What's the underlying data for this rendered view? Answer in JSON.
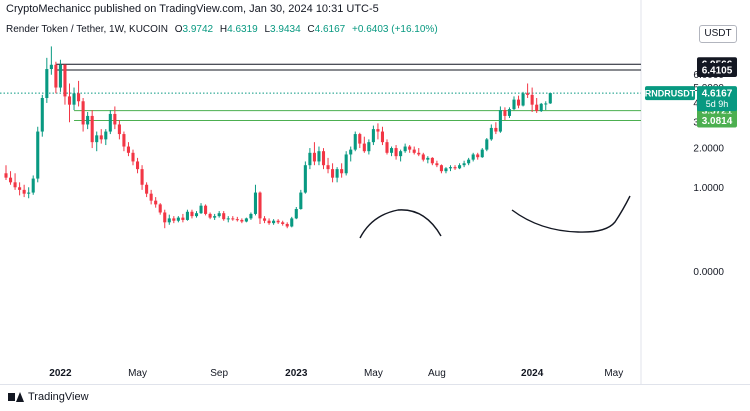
{
  "header": {
    "published": "CryptoMechanicc published on TradingView.com, Jan 30, 2024 10:31 UTC-5"
  },
  "legend": {
    "symbol": "Render Token / Tether, 1W, KUCOIN",
    "o_label": "O",
    "o_value": "3.9742",
    "h_label": "H",
    "h_value": "4.6319",
    "l_label": "L",
    "l_value": "3.9434",
    "c_label": "C",
    "c_value": "4.6167",
    "change": "+0.6403 (+16.10%)"
  },
  "currency_button": "USDT",
  "footer": {
    "brand": "TradingView"
  },
  "colors": {
    "up": "#089981",
    "down": "#f23645",
    "level": "#4caf50",
    "accent_label": "#089981"
  },
  "chart_data": {
    "type": "candlestick",
    "interval": "1W",
    "y_axis": {
      "position": "right",
      "ticks": [
        0,
        1,
        2,
        3,
        4,
        5,
        6
      ],
      "tick_labels": [
        "0.0000",
        "1.0000",
        "2.0000",
        "3.0000",
        "4.0000",
        "5.0000",
        "6.0000"
      ],
      "scale": "log",
      "range": [
        -0.35,
        9.2
      ]
    },
    "x_axis": {
      "range": [
        "2021-10-11",
        "2024-06-17"
      ],
      "tick_labels": [
        {
          "label": "2022",
          "date": "2022-01-03"
        },
        {
          "label": "May",
          "date": "2022-05-02"
        },
        {
          "label": "Sep",
          "date": "2022-09-05"
        },
        {
          "label": "2023",
          "date": "2023-01-02"
        },
        {
          "label": "May",
          "date": "2023-05-01"
        },
        {
          "label": "Aug",
          "date": "2023-08-07"
        },
        {
          "label": "2024",
          "date": "2024-01-01"
        },
        {
          "label": "May",
          "date": "2024-05-06"
        }
      ]
    },
    "horizontal_levels": [
      {
        "value": 6.9566,
        "label": "6.9566",
        "style": "black"
      },
      {
        "value": 6.4105,
        "label": "6.4105",
        "style": "black"
      },
      {
        "value": 3.5721,
        "label": "3.5721",
        "style": "green"
      },
      {
        "value": 3.0814,
        "label": "3.0814",
        "style": "green"
      }
    ],
    "last_price": {
      "value": 4.6167,
      "symbol_label": "RNDRUSDT",
      "price_label": "4.6167",
      "countdown": "5d 9h"
    },
    "candles": [
      {
        "date": "2021-10-11",
        "o": 1.3,
        "h": 1.5,
        "l": 1.15,
        "c": 1.2
      },
      {
        "date": "2021-10-18",
        "o": 1.2,
        "h": 1.35,
        "l": 1.05,
        "c": 1.1
      },
      {
        "date": "2021-10-25",
        "o": 1.1,
        "h": 1.3,
        "l": 0.95,
        "c": 1.0
      },
      {
        "date": "2021-11-01",
        "o": 1.0,
        "h": 1.1,
        "l": 0.85,
        "c": 0.95
      },
      {
        "date": "2021-11-08",
        "o": 0.95,
        "h": 1.05,
        "l": 0.82,
        "c": 0.88
      },
      {
        "date": "2021-11-15",
        "o": 0.88,
        "h": 1.0,
        "l": 0.8,
        "c": 0.9
      },
      {
        "date": "2021-11-22",
        "o": 0.9,
        "h": 1.25,
        "l": 0.86,
        "c": 1.18
      },
      {
        "date": "2021-11-29",
        "o": 1.18,
        "h": 2.8,
        "l": 1.1,
        "c": 2.6
      },
      {
        "date": "2021-12-06",
        "o": 2.6,
        "h": 4.5,
        "l": 2.4,
        "c": 4.3
      },
      {
        "date": "2021-12-13",
        "o": 4.3,
        "h": 7.6,
        "l": 4.0,
        "c": 6.5
      },
      {
        "date": "2021-12-20",
        "o": 6.5,
        "h": 8.9,
        "l": 6.0,
        "c": 6.9
      },
      {
        "date": "2021-12-27",
        "o": 6.9,
        "h": 7.2,
        "l": 4.6,
        "c": 5.0
      },
      {
        "date": "2022-01-03",
        "o": 5.0,
        "h": 7.4,
        "l": 4.7,
        "c": 6.9
      },
      {
        "date": "2022-01-10",
        "o": 6.9,
        "h": 6.95,
        "l": 3.9,
        "c": 4.4
      },
      {
        "date": "2022-01-17",
        "o": 4.4,
        "h": 5.3,
        "l": 3.0,
        "c": 3.9
      },
      {
        "date": "2022-01-24",
        "o": 3.9,
        "h": 5.0,
        "l": 3.6,
        "c": 4.6
      },
      {
        "date": "2022-01-31",
        "o": 4.6,
        "h": 5.5,
        "l": 3.8,
        "c": 4.1
      },
      {
        "date": "2022-02-07",
        "o": 4.1,
        "h": 4.3,
        "l": 2.6,
        "c": 2.9
      },
      {
        "date": "2022-02-14",
        "o": 2.9,
        "h": 3.5,
        "l": 2.7,
        "c": 3.3
      },
      {
        "date": "2022-02-21",
        "o": 3.3,
        "h": 3.6,
        "l": 2.0,
        "c": 2.2
      },
      {
        "date": "2022-02-28",
        "o": 2.2,
        "h": 2.6,
        "l": 1.9,
        "c": 2.45
      },
      {
        "date": "2022-03-07",
        "o": 2.45,
        "h": 2.7,
        "l": 2.15,
        "c": 2.3
      },
      {
        "date": "2022-03-14",
        "o": 2.3,
        "h": 2.7,
        "l": 2.1,
        "c": 2.6
      },
      {
        "date": "2022-03-21",
        "o": 2.6,
        "h": 3.6,
        "l": 2.5,
        "c": 3.4
      },
      {
        "date": "2022-03-28",
        "o": 3.4,
        "h": 3.8,
        "l": 2.7,
        "c": 2.9
      },
      {
        "date": "2022-04-04",
        "o": 2.9,
        "h": 3.1,
        "l": 2.3,
        "c": 2.5
      },
      {
        "date": "2022-04-11",
        "o": 2.5,
        "h": 2.6,
        "l": 1.9,
        "c": 2.05
      },
      {
        "date": "2022-04-18",
        "o": 2.05,
        "h": 2.2,
        "l": 1.75,
        "c": 1.85
      },
      {
        "date": "2022-04-25",
        "o": 1.85,
        "h": 1.95,
        "l": 1.5,
        "c": 1.6
      },
      {
        "date": "2022-05-02",
        "o": 1.6,
        "h": 1.7,
        "l": 1.3,
        "c": 1.4
      },
      {
        "date": "2022-05-09",
        "o": 1.4,
        "h": 1.5,
        "l": 0.95,
        "c": 1.05
      },
      {
        "date": "2022-05-16",
        "o": 1.05,
        "h": 1.1,
        "l": 0.82,
        "c": 0.88
      },
      {
        "date": "2022-05-23",
        "o": 0.88,
        "h": 0.95,
        "l": 0.7,
        "c": 0.76
      },
      {
        "date": "2022-05-30",
        "o": 0.76,
        "h": 0.82,
        "l": 0.65,
        "c": 0.7
      },
      {
        "date": "2022-06-06",
        "o": 0.7,
        "h": 0.72,
        "l": 0.55,
        "c": 0.58
      },
      {
        "date": "2022-06-13",
        "o": 0.58,
        "h": 0.62,
        "l": 0.38,
        "c": 0.45
      },
      {
        "date": "2022-06-20",
        "o": 0.45,
        "h": 0.55,
        "l": 0.42,
        "c": 0.5
      },
      {
        "date": "2022-06-27",
        "o": 0.5,
        "h": 0.53,
        "l": 0.44,
        "c": 0.47
      },
      {
        "date": "2022-07-04",
        "o": 0.47,
        "h": 0.53,
        "l": 0.45,
        "c": 0.51
      },
      {
        "date": "2022-07-11",
        "o": 0.51,
        "h": 0.56,
        "l": 0.45,
        "c": 0.48
      },
      {
        "date": "2022-07-18",
        "o": 0.48,
        "h": 0.62,
        "l": 0.47,
        "c": 0.59
      },
      {
        "date": "2022-07-25",
        "o": 0.59,
        "h": 0.62,
        "l": 0.5,
        "c": 0.53
      },
      {
        "date": "2022-08-01",
        "o": 0.53,
        "h": 0.6,
        "l": 0.51,
        "c": 0.57
      },
      {
        "date": "2022-08-08",
        "o": 0.57,
        "h": 0.72,
        "l": 0.56,
        "c": 0.68
      },
      {
        "date": "2022-08-15",
        "o": 0.68,
        "h": 0.7,
        "l": 0.54,
        "c": 0.56
      },
      {
        "date": "2022-08-22",
        "o": 0.56,
        "h": 0.58,
        "l": 0.49,
        "c": 0.51
      },
      {
        "date": "2022-08-29",
        "o": 0.51,
        "h": 0.56,
        "l": 0.48,
        "c": 0.53
      },
      {
        "date": "2022-09-05",
        "o": 0.53,
        "h": 0.6,
        "l": 0.51,
        "c": 0.57
      },
      {
        "date": "2022-09-12",
        "o": 0.57,
        "h": 0.6,
        "l": 0.47,
        "c": 0.49
      },
      {
        "date": "2022-09-19",
        "o": 0.49,
        "h": 0.53,
        "l": 0.45,
        "c": 0.5
      },
      {
        "date": "2022-09-26",
        "o": 0.5,
        "h": 0.53,
        "l": 0.47,
        "c": 0.49
      },
      {
        "date": "2022-10-03",
        "o": 0.49,
        "h": 0.52,
        "l": 0.46,
        "c": 0.48
      },
      {
        "date": "2022-10-10",
        "o": 0.48,
        "h": 0.5,
        "l": 0.44,
        "c": 0.46
      },
      {
        "date": "2022-10-17",
        "o": 0.46,
        "h": 0.51,
        "l": 0.45,
        "c": 0.5
      },
      {
        "date": "2022-10-24",
        "o": 0.5,
        "h": 0.58,
        "l": 0.48,
        "c": 0.56
      },
      {
        "date": "2022-10-31",
        "o": 0.56,
        "h": 1.05,
        "l": 0.54,
        "c": 0.9
      },
      {
        "date": "2022-11-07",
        "o": 0.9,
        "h": 0.92,
        "l": 0.43,
        "c": 0.5
      },
      {
        "date": "2022-11-14",
        "o": 0.5,
        "h": 0.53,
        "l": 0.44,
        "c": 0.47
      },
      {
        "date": "2022-11-21",
        "o": 0.47,
        "h": 0.5,
        "l": 0.42,
        "c": 0.44
      },
      {
        "date": "2022-11-28",
        "o": 0.44,
        "h": 0.49,
        "l": 0.42,
        "c": 0.47
      },
      {
        "date": "2022-12-05",
        "o": 0.47,
        "h": 0.49,
        "l": 0.43,
        "c": 0.45
      },
      {
        "date": "2022-12-12",
        "o": 0.45,
        "h": 0.47,
        "l": 0.41,
        "c": 0.43
      },
      {
        "date": "2022-12-19",
        "o": 0.43,
        "h": 0.45,
        "l": 0.38,
        "c": 0.4
      },
      {
        "date": "2022-12-26",
        "o": 0.4,
        "h": 0.52,
        "l": 0.39,
        "c": 0.5
      },
      {
        "date": "2023-01-02",
        "o": 0.5,
        "h": 0.66,
        "l": 0.49,
        "c": 0.63
      },
      {
        "date": "2023-01-09",
        "o": 0.63,
        "h": 0.95,
        "l": 0.62,
        "c": 0.9
      },
      {
        "date": "2023-01-16",
        "o": 0.9,
        "h": 1.6,
        "l": 0.88,
        "c": 1.5
      },
      {
        "date": "2023-01-23",
        "o": 1.5,
        "h": 2.0,
        "l": 1.4,
        "c": 1.85
      },
      {
        "date": "2023-01-30",
        "o": 1.85,
        "h": 2.2,
        "l": 1.5,
        "c": 1.6
      },
      {
        "date": "2023-02-06",
        "o": 1.6,
        "h": 2.05,
        "l": 1.5,
        "c": 1.9
      },
      {
        "date": "2023-02-13",
        "o": 1.9,
        "h": 2.0,
        "l": 1.4,
        "c": 1.5
      },
      {
        "date": "2023-02-20",
        "o": 1.5,
        "h": 1.7,
        "l": 1.3,
        "c": 1.4
      },
      {
        "date": "2023-02-27",
        "o": 1.4,
        "h": 1.55,
        "l": 1.1,
        "c": 1.2
      },
      {
        "date": "2023-03-06",
        "o": 1.2,
        "h": 1.45,
        "l": 1.1,
        "c": 1.4
      },
      {
        "date": "2023-03-13",
        "o": 1.4,
        "h": 1.55,
        "l": 1.2,
        "c": 1.3
      },
      {
        "date": "2023-03-20",
        "o": 1.3,
        "h": 1.9,
        "l": 1.25,
        "c": 1.8
      },
      {
        "date": "2023-03-27",
        "o": 1.8,
        "h": 2.05,
        "l": 1.6,
        "c": 1.95
      },
      {
        "date": "2023-04-03",
        "o": 1.95,
        "h": 2.6,
        "l": 1.9,
        "c": 2.5
      },
      {
        "date": "2023-04-10",
        "o": 2.5,
        "h": 2.55,
        "l": 2.0,
        "c": 2.15
      },
      {
        "date": "2023-04-17",
        "o": 2.15,
        "h": 2.4,
        "l": 1.85,
        "c": 1.9
      },
      {
        "date": "2023-04-24",
        "o": 1.9,
        "h": 2.3,
        "l": 1.8,
        "c": 2.2
      },
      {
        "date": "2023-05-01",
        "o": 2.2,
        "h": 2.85,
        "l": 2.1,
        "c": 2.7
      },
      {
        "date": "2023-05-08",
        "o": 2.7,
        "h": 2.95,
        "l": 2.3,
        "c": 2.6
      },
      {
        "date": "2023-05-15",
        "o": 2.6,
        "h": 2.8,
        "l": 2.1,
        "c": 2.2
      },
      {
        "date": "2023-05-22",
        "o": 2.2,
        "h": 2.3,
        "l": 1.8,
        "c": 1.85
      },
      {
        "date": "2023-05-29",
        "o": 1.85,
        "h": 2.05,
        "l": 1.75,
        "c": 2.0
      },
      {
        "date": "2023-06-05",
        "o": 2.0,
        "h": 2.1,
        "l": 1.65,
        "c": 1.75
      },
      {
        "date": "2023-06-12",
        "o": 1.75,
        "h": 1.95,
        "l": 1.6,
        "c": 1.9
      },
      {
        "date": "2023-06-19",
        "o": 1.9,
        "h": 2.15,
        "l": 1.85,
        "c": 2.05
      },
      {
        "date": "2023-06-26",
        "o": 2.05,
        "h": 2.1,
        "l": 1.85,
        "c": 1.95
      },
      {
        "date": "2023-07-03",
        "o": 1.95,
        "h": 2.05,
        "l": 1.8,
        "c": 1.85
      },
      {
        "date": "2023-07-10",
        "o": 1.85,
        "h": 2.0,
        "l": 1.75,
        "c": 1.8
      },
      {
        "date": "2023-07-17",
        "o": 1.8,
        "h": 1.85,
        "l": 1.6,
        "c": 1.65
      },
      {
        "date": "2023-07-24",
        "o": 1.65,
        "h": 1.75,
        "l": 1.55,
        "c": 1.7
      },
      {
        "date": "2023-07-31",
        "o": 1.7,
        "h": 1.72,
        "l": 1.5,
        "c": 1.55
      },
      {
        "date": "2023-08-07",
        "o": 1.55,
        "h": 1.62,
        "l": 1.45,
        "c": 1.5
      },
      {
        "date": "2023-08-14",
        "o": 1.5,
        "h": 1.52,
        "l": 1.3,
        "c": 1.35
      },
      {
        "date": "2023-08-21",
        "o": 1.35,
        "h": 1.45,
        "l": 1.3,
        "c": 1.42
      },
      {
        "date": "2023-08-28",
        "o": 1.42,
        "h": 1.5,
        "l": 1.35,
        "c": 1.45
      },
      {
        "date": "2023-09-04",
        "o": 1.45,
        "h": 1.5,
        "l": 1.38,
        "c": 1.42
      },
      {
        "date": "2023-09-11",
        "o": 1.42,
        "h": 1.55,
        "l": 1.4,
        "c": 1.5
      },
      {
        "date": "2023-09-18",
        "o": 1.5,
        "h": 1.62,
        "l": 1.45,
        "c": 1.55
      },
      {
        "date": "2023-09-25",
        "o": 1.55,
        "h": 1.7,
        "l": 1.5,
        "c": 1.65
      },
      {
        "date": "2023-10-02",
        "o": 1.65,
        "h": 1.85,
        "l": 1.6,
        "c": 1.8
      },
      {
        "date": "2023-10-09",
        "o": 1.8,
        "h": 1.85,
        "l": 1.65,
        "c": 1.72
      },
      {
        "date": "2023-10-16",
        "o": 1.72,
        "h": 2.0,
        "l": 1.7,
        "c": 1.95
      },
      {
        "date": "2023-10-23",
        "o": 1.95,
        "h": 2.35,
        "l": 1.9,
        "c": 2.3
      },
      {
        "date": "2023-10-30",
        "o": 2.3,
        "h": 2.9,
        "l": 2.25,
        "c": 2.75
      },
      {
        "date": "2023-11-06",
        "o": 2.75,
        "h": 3.0,
        "l": 2.5,
        "c": 2.6
      },
      {
        "date": "2023-11-13",
        "o": 2.6,
        "h": 3.8,
        "l": 2.55,
        "c": 3.6
      },
      {
        "date": "2023-11-20",
        "o": 3.6,
        "h": 3.75,
        "l": 3.1,
        "c": 3.3
      },
      {
        "date": "2023-11-27",
        "o": 3.3,
        "h": 3.75,
        "l": 3.2,
        "c": 3.65
      },
      {
        "date": "2023-12-04",
        "o": 3.65,
        "h": 4.4,
        "l": 3.6,
        "c": 4.2
      },
      {
        "date": "2023-12-11",
        "o": 4.2,
        "h": 4.45,
        "l": 3.7,
        "c": 3.85
      },
      {
        "date": "2023-12-18",
        "o": 3.85,
        "h": 4.7,
        "l": 3.8,
        "c": 4.6
      },
      {
        "date": "2023-12-25",
        "o": 4.6,
        "h": 5.3,
        "l": 4.3,
        "c": 4.5
      },
      {
        "date": "2024-01-01",
        "o": 4.5,
        "h": 5.0,
        "l": 3.5,
        "c": 3.9
      },
      {
        "date": "2024-01-08",
        "o": 3.9,
        "h": 4.3,
        "l": 3.45,
        "c": 3.55
      },
      {
        "date": "2024-01-15",
        "o": 3.55,
        "h": 4.0,
        "l": 3.5,
        "c": 3.95
      },
      {
        "date": "2024-01-22",
        "o": 3.95,
        "h": 4.1,
        "l": 3.6,
        "c": 3.97
      },
      {
        "date": "2024-01-29",
        "o": 3.9742,
        "h": 4.6319,
        "l": 3.9434,
        "c": 4.6167
      }
    ]
  }
}
